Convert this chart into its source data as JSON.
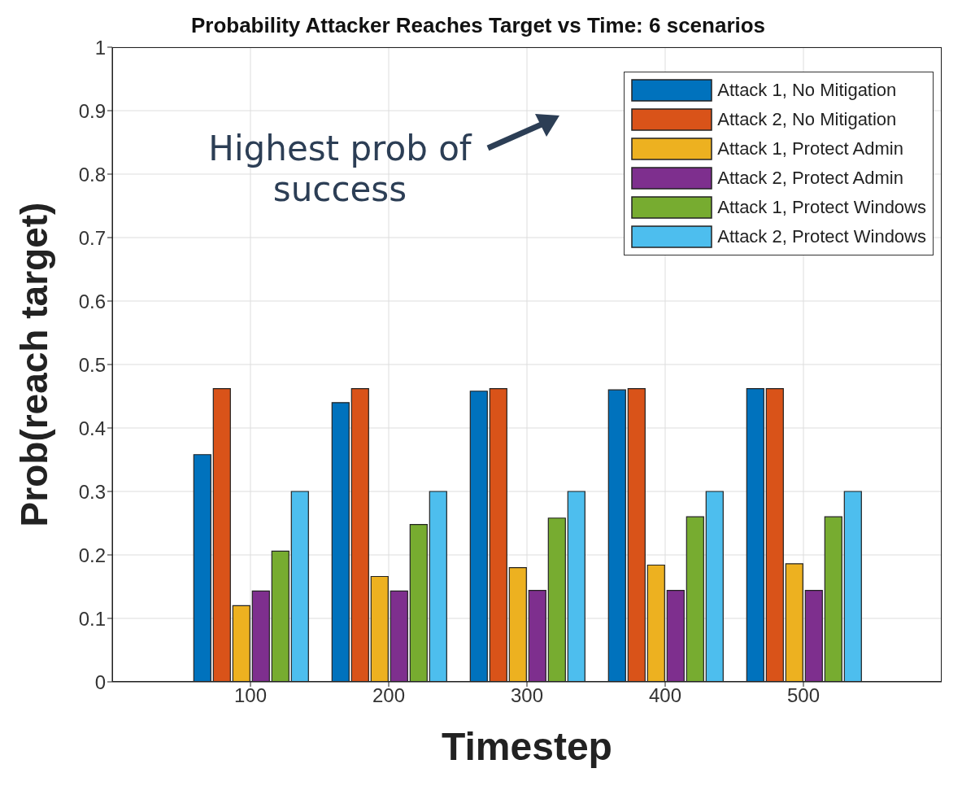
{
  "chart_data": {
    "type": "bar",
    "title": "Probability Attacker Reaches Target vs Time: 6 scenarios",
    "xlabel": "Timestep",
    "ylabel": "Prob(reach target)",
    "categories": [
      "100",
      "200",
      "300",
      "400",
      "500"
    ],
    "series": [
      {
        "name": "Attack 1, No Mitigation",
        "color": "#0072bd",
        "values": [
          0.358,
          0.44,
          0.458,
          0.46,
          0.462
        ]
      },
      {
        "name": "Attack 2, No Mitigation",
        "color": "#d95319",
        "values": [
          0.462,
          0.462,
          0.462,
          0.462,
          0.462
        ]
      },
      {
        "name": "Attack 1, Protect Admin",
        "color": "#edb120",
        "values": [
          0.12,
          0.166,
          0.18,
          0.184,
          0.186
        ]
      },
      {
        "name": "Attack 2, Protect Admin",
        "color": "#7e2f8e",
        "values": [
          0.143,
          0.143,
          0.144,
          0.144,
          0.144
        ]
      },
      {
        "name": "Attack 1, Protect Windows",
        "color": "#77ac30",
        "values": [
          0.206,
          0.248,
          0.258,
          0.26,
          0.26
        ]
      },
      {
        "name": "Attack 2, Protect Windows",
        "color": "#4dbeee",
        "values": [
          0.3,
          0.3,
          0.3,
          0.3,
          0.3
        ]
      }
    ],
    "ylim": [
      0,
      1
    ],
    "yticks": [
      0,
      0.1,
      0.2,
      0.3,
      0.4,
      0.5,
      0.6,
      0.7,
      0.8,
      0.9,
      1
    ],
    "grid": true,
    "legend": "top right",
    "annotations": [
      "Highest prob of success"
    ]
  }
}
